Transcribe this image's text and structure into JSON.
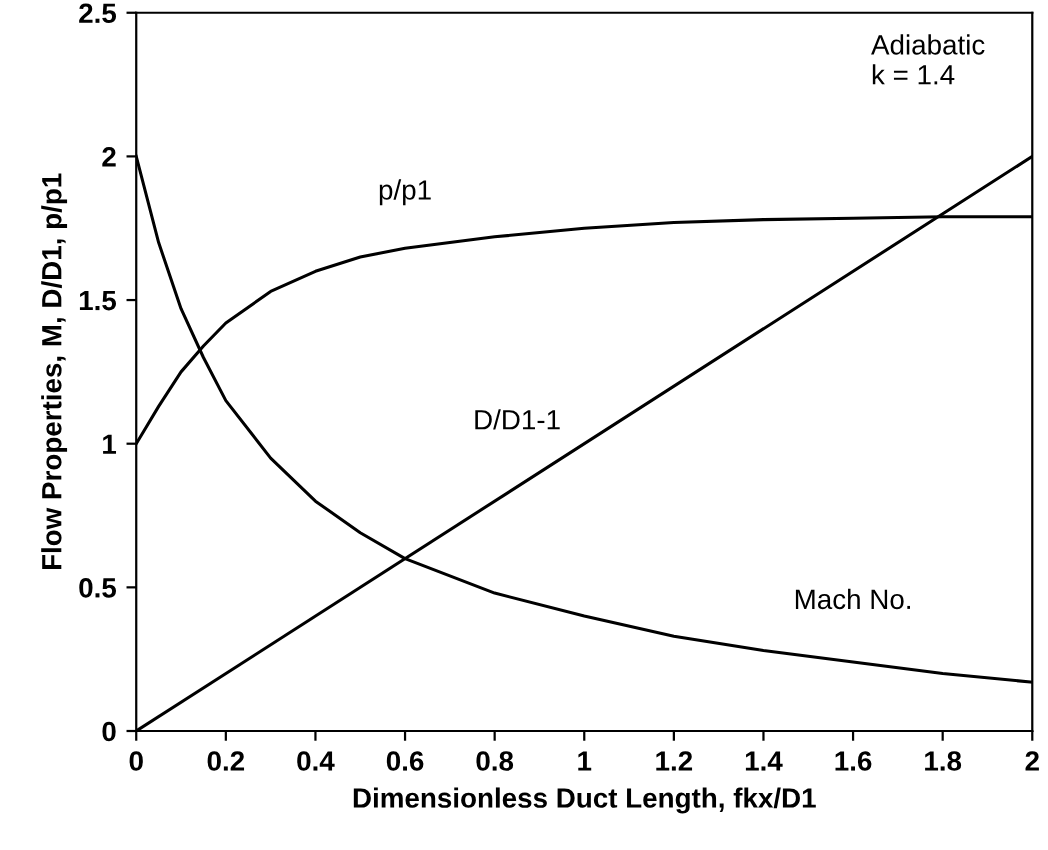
{
  "chart_data": {
    "type": "line",
    "xlabel": "Dimensionless Duct Length, fkx/D1",
    "ylabel": "Flow Properties, M, D/D1, p/p1",
    "xlim": [
      0,
      2
    ],
    "xticks": [
      0,
      0.2,
      0.4,
      0.6,
      0.8,
      1,
      1.2,
      1.4,
      1.6,
      1.8,
      2
    ],
    "ylim": [
      0,
      2.5
    ],
    "yticks": [
      0,
      0.5,
      1,
      1.5,
      2,
      2.5
    ],
    "grid": false,
    "marker": "none",
    "line_style": "solid",
    "series": [
      {
        "color": "#000000",
        "x": [
          0,
          0.05,
          0.1,
          0.15,
          0.2,
          0.3,
          0.4,
          0.5,
          0.6,
          0.8,
          1.0,
          1.2,
          1.4,
          1.6,
          1.8,
          2.0
        ],
        "values": [
          2.0,
          1.7,
          1.47,
          1.3,
          1.15,
          0.95,
          0.8,
          0.69,
          0.6,
          0.48,
          0.4,
          0.33,
          0.28,
          0.24,
          0.2,
          0.17
        ]
      },
      {
        "color": "#000000",
        "x": [
          0,
          0.05,
          0.1,
          0.15,
          0.2,
          0.3,
          0.4,
          0.5,
          0.6,
          0.8,
          1.0,
          1.2,
          1.4,
          1.6,
          1.8,
          2.0
        ],
        "values": [
          1.0,
          1.13,
          1.25,
          1.34,
          1.42,
          1.53,
          1.6,
          1.65,
          1.68,
          1.72,
          1.75,
          1.77,
          1.78,
          1.785,
          1.79,
          1.79
        ]
      },
      {
        "color": "#000000",
        "x": [
          0,
          2
        ],
        "values": [
          0,
          2
        ]
      }
    ],
    "annotations": [
      "Adiabatic\nk = 1.4",
      "p/p1",
      "D/D1-1",
      "Mach No."
    ]
  }
}
